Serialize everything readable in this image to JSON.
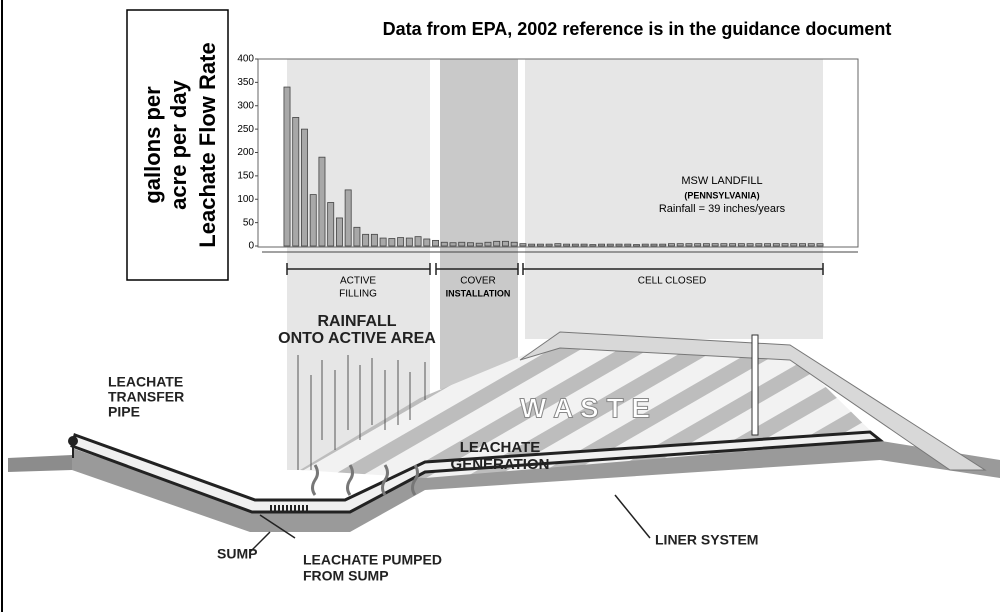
{
  "chart_data": {
    "type": "bar",
    "title": "Data from EPA, 2002 reference is in the guidance document",
    "ylabel": "Leachate Flow Rate",
    "ylabel_units": [
      "gallons per",
      "acre per day"
    ],
    "annotation": [
      "MSW LANDFILL",
      "(PENNSYLVANIA)",
      "Rainfall = 39 inches/years"
    ],
    "phases": [
      [
        "ACTIVE",
        "FILLING"
      ],
      [
        "COVER",
        "INSTALLATION"
      ],
      [
        "CELL CLOSED"
      ]
    ],
    "categories": [
      null,
      null,
      null,
      null,
      null,
      null,
      null,
      null,
      null,
      null,
      null,
      null,
      null,
      null,
      null,
      null,
      null,
      null,
      null,
      null,
      null,
      null,
      null,
      null,
      null,
      null,
      null,
      null,
      null,
      null,
      null,
      null,
      null,
      null,
      null,
      null,
      null,
      null,
      null,
      null,
      null,
      null,
      null,
      null,
      null,
      null,
      null,
      null,
      null,
      null,
      null,
      null,
      null,
      null,
      null,
      null,
      null,
      null,
      null,
      null,
      null,
      null
    ],
    "values": [
      340,
      275,
      250,
      110,
      190,
      93,
      60,
      120,
      40,
      25,
      25,
      17,
      16,
      18,
      17,
      20,
      15,
      12,
      8,
      7,
      8,
      7,
      6,
      8,
      10,
      10,
      8,
      5,
      4,
      4,
      4,
      5,
      4,
      4,
      4,
      3,
      4,
      4,
      4,
      4,
      3,
      4,
      4,
      4,
      5,
      5,
      5,
      5,
      5,
      5,
      5,
      5,
      5,
      5,
      5,
      5,
      5,
      5,
      5,
      5,
      5,
      5
    ],
    "color": "#a8a8a8",
    "ylim": [
      0,
      400
    ],
    "yticks": [
      0,
      50,
      100,
      150,
      200,
      250,
      300,
      350,
      400
    ],
    "grid": false
  },
  "diagram": {
    "labels": {
      "pipe": [
        "LEACHATE",
        "TRANSFER",
        "PIPE"
      ],
      "rainfall": [
        "RAINFALL",
        "ONTO ACTIVE AREA"
      ],
      "waste": "W A S T E",
      "generation": [
        "LEACHATE",
        "GENERATION"
      ],
      "sump": "SUMP",
      "pumped": [
        "LEACHATE PUMPED",
        "FROM SUMP"
      ],
      "liner": "LINER SYSTEM"
    }
  }
}
